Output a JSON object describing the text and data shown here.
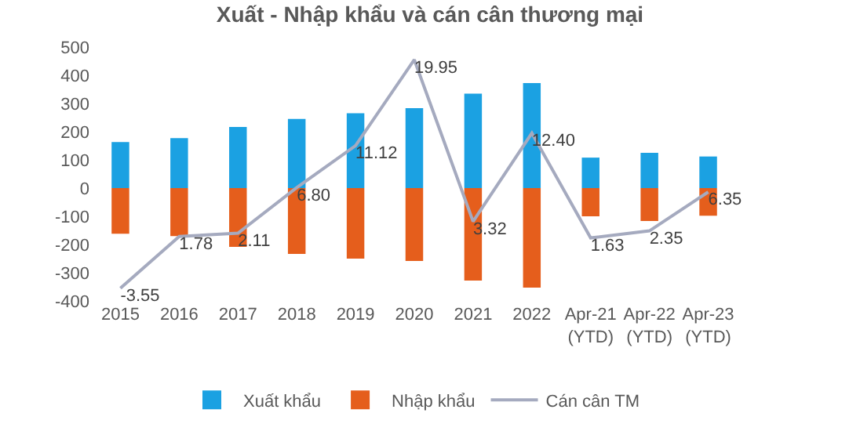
{
  "chart_data": {
    "type": "bar",
    "title": "Xuất - Nhập khẩu và cán cân thương mại",
    "categories": [
      "2015",
      "2016",
      "2017",
      "2018",
      "2019",
      "2020",
      "2021",
      "2022",
      "Apr-21\n(YTD)",
      "Apr-22\n(YTD)",
      "Apr-23\n(YTD)"
    ],
    "series": [
      {
        "name": "Xuất khẩu",
        "color": "#1ba1e2",
        "values": [
          163,
          177,
          217,
          245,
          265,
          283,
          335,
          372,
          108,
          125,
          112
        ]
      },
      {
        "name": "Nhập khẩu",
        "color": "#e55e1c",
        "values": [
          -162,
          -170,
          -208,
          -233,
          -250,
          -258,
          -328,
          -353,
          -100,
          -117,
          -98
        ]
      },
      {
        "name": "Cán cân TM",
        "type": "line",
        "axis": "y2",
        "color": "#a5aabf",
        "values": [
          -3.55,
          1.78,
          2.11,
          6.8,
          11.12,
          19.95,
          3.32,
          12.4,
          1.63,
          2.35,
          6.35
        ],
        "value_labels": [
          "-3.55",
          "1.78",
          "2.11",
          "6.80",
          "11.12",
          "19.95",
          "3.32",
          "12.40",
          "1.63",
          "2.35",
          "6.35"
        ]
      }
    ],
    "ylim": [
      -400,
      500
    ],
    "yticks": [
      -400,
      -300,
      -200,
      -100,
      0,
      100,
      200,
      300,
      400,
      500
    ],
    "stacked": true,
    "grid": false,
    "legend": "bottom",
    "marker": "none"
  }
}
